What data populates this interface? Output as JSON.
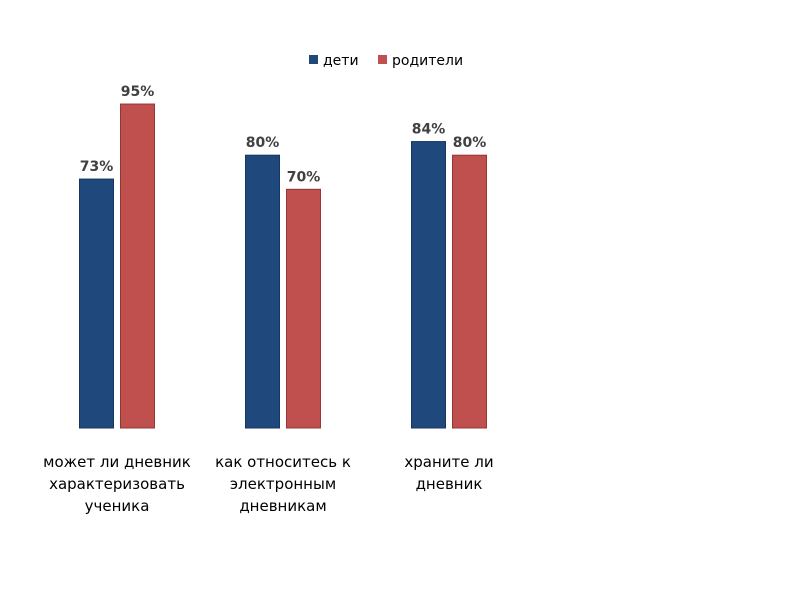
{
  "chart_data": {
    "type": "bar",
    "title": "",
    "xlabel": "",
    "ylabel": "",
    "ylim": [
      0,
      100
    ],
    "grid": false,
    "legend_position": "top-center",
    "categories": [
      [
        "может ли дневник",
        "характеризовать",
        "ученика"
      ],
      [
        "как относитесь к",
        "электронным",
        "дневникам"
      ],
      [
        "храните ли",
        "дневник"
      ]
    ],
    "series": [
      {
        "name": "дети",
        "color": "#1F497D",
        "values": [
          73,
          80,
          84
        ],
        "labels": [
          "73%",
          "80%",
          "84%"
        ]
      },
      {
        "name": "родители",
        "color": "#C0504D",
        "values": [
          95,
          70,
          80
        ],
        "labels": [
          "95%",
          "70%",
          "80%"
        ]
      }
    ]
  }
}
